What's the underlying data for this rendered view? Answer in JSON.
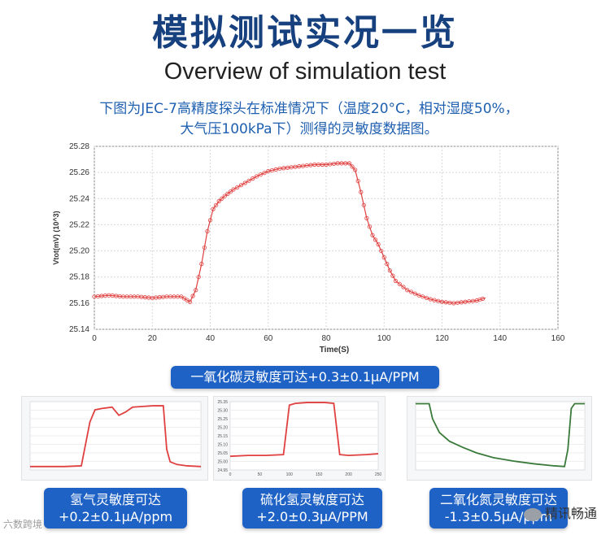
{
  "header": {
    "title_cn": "模拟测试实况一览",
    "title_en": "Overview of simulation test",
    "description_line1": "下图为JEC-7高精度探头在标准情况下（温度20°C，相对湿度50%，",
    "description_line2": "大气压100kPa下）测得的灵敏度数据图。"
  },
  "chart_data": [
    {
      "type": "line",
      "title": "",
      "xlabel": "Time(S)",
      "ylabel": "Vtot(mV) (10^3)",
      "xlim": [
        0,
        160
      ],
      "ylim": [
        25.14,
        25.28
      ],
      "xticks": [
        0,
        20,
        40,
        60,
        80,
        100,
        120,
        140,
        160
      ],
      "yticks": [
        "25.14",
        "25.16",
        "25.18",
        "25.20",
        "25.22",
        "25.24",
        "25.26",
        "25.28"
      ],
      "grid": true,
      "color": "#e04040",
      "series": [
        {
          "x": [
            0,
            5,
            10,
            15,
            20,
            25,
            30,
            33,
            35,
            37,
            39,
            41,
            43,
            45,
            48,
            52,
            56,
            60,
            64,
            68,
            72,
            76,
            80,
            84,
            88,
            90,
            92,
            94,
            96,
            98,
            100,
            102,
            104,
            108,
            112,
            116,
            120,
            124,
            128,
            132,
            135
          ],
          "y": [
            25.165,
            25.166,
            25.165,
            25.165,
            25.164,
            25.165,
            25.165,
            25.161,
            25.17,
            25.19,
            25.215,
            25.232,
            25.238,
            25.242,
            25.247,
            25.252,
            25.257,
            25.261,
            25.263,
            25.264,
            25.265,
            25.266,
            25.266,
            25.267,
            25.267,
            25.262,
            25.245,
            25.225,
            25.212,
            25.205,
            25.195,
            25.185,
            25.177,
            25.17,
            25.166,
            25.163,
            25.161,
            25.16,
            25.161,
            25.162,
            25.164
          ]
        }
      ]
    },
    {
      "type": "line",
      "title": "",
      "color": "#e04040",
      "series": [
        {
          "x": [
            0,
            10,
            20,
            30,
            35,
            38,
            42,
            48,
            52,
            56,
            60,
            66,
            72,
            78,
            80,
            82,
            86,
            92,
            100
          ],
          "y": [
            0.05,
            0.05,
            0.05,
            0.06,
            0.7,
            0.88,
            0.9,
            0.92,
            0.8,
            0.85,
            0.92,
            0.93,
            0.94,
            0.94,
            0.3,
            0.12,
            0.08,
            0.06,
            0.05
          ]
        }
      ]
    },
    {
      "type": "line",
      "title": "",
      "yticks": [
        "25.35",
        "25.30",
        "25.25",
        "25.20",
        "25.15",
        "25.10",
        "25.05",
        "25.00",
        "24.95"
      ],
      "xticks": [
        "0",
        "50",
        "100",
        "150",
        "200",
        "250"
      ],
      "color": "#e04040",
      "series": [
        {
          "x": [
            0,
            30,
            60,
            90,
            100,
            110,
            130,
            160,
            175,
            185,
            200,
            230,
            250
          ],
          "y": [
            25.03,
            25.035,
            25.035,
            25.04,
            25.33,
            25.34,
            25.345,
            25.345,
            25.34,
            25.04,
            25.035,
            25.04,
            25.045
          ]
        }
      ]
    },
    {
      "type": "line",
      "title": "",
      "color": "#3a7a3a",
      "series": [
        {
          "x": [
            0,
            8,
            10,
            14,
            20,
            28,
            36,
            46,
            58,
            70,
            82,
            88,
            90,
            92,
            94,
            100
          ],
          "y": [
            0.97,
            0.97,
            0.75,
            0.55,
            0.42,
            0.33,
            0.25,
            0.18,
            0.13,
            0.09,
            0.06,
            0.05,
            0.3,
            0.9,
            0.97,
            0.97
          ]
        }
      ]
    }
  ],
  "badges": {
    "co": "一氧化碳灵敏度可达+0.3±0.1μA/PPM",
    "h2_line1": "氢气灵敏度可达",
    "h2_line2": "+0.2±0.1μA/ppm",
    "h2s_line1": "硫化氢灵敏度可达",
    "h2s_line2": "+2.0±0.3μA/PPM",
    "no2_line1": "二氧化氮灵敏度可达",
    "no2_line2": "-1.3±0.5μA/ppm"
  },
  "watermarks": {
    "left": "六数跨境",
    "right": "精讯畅通"
  }
}
